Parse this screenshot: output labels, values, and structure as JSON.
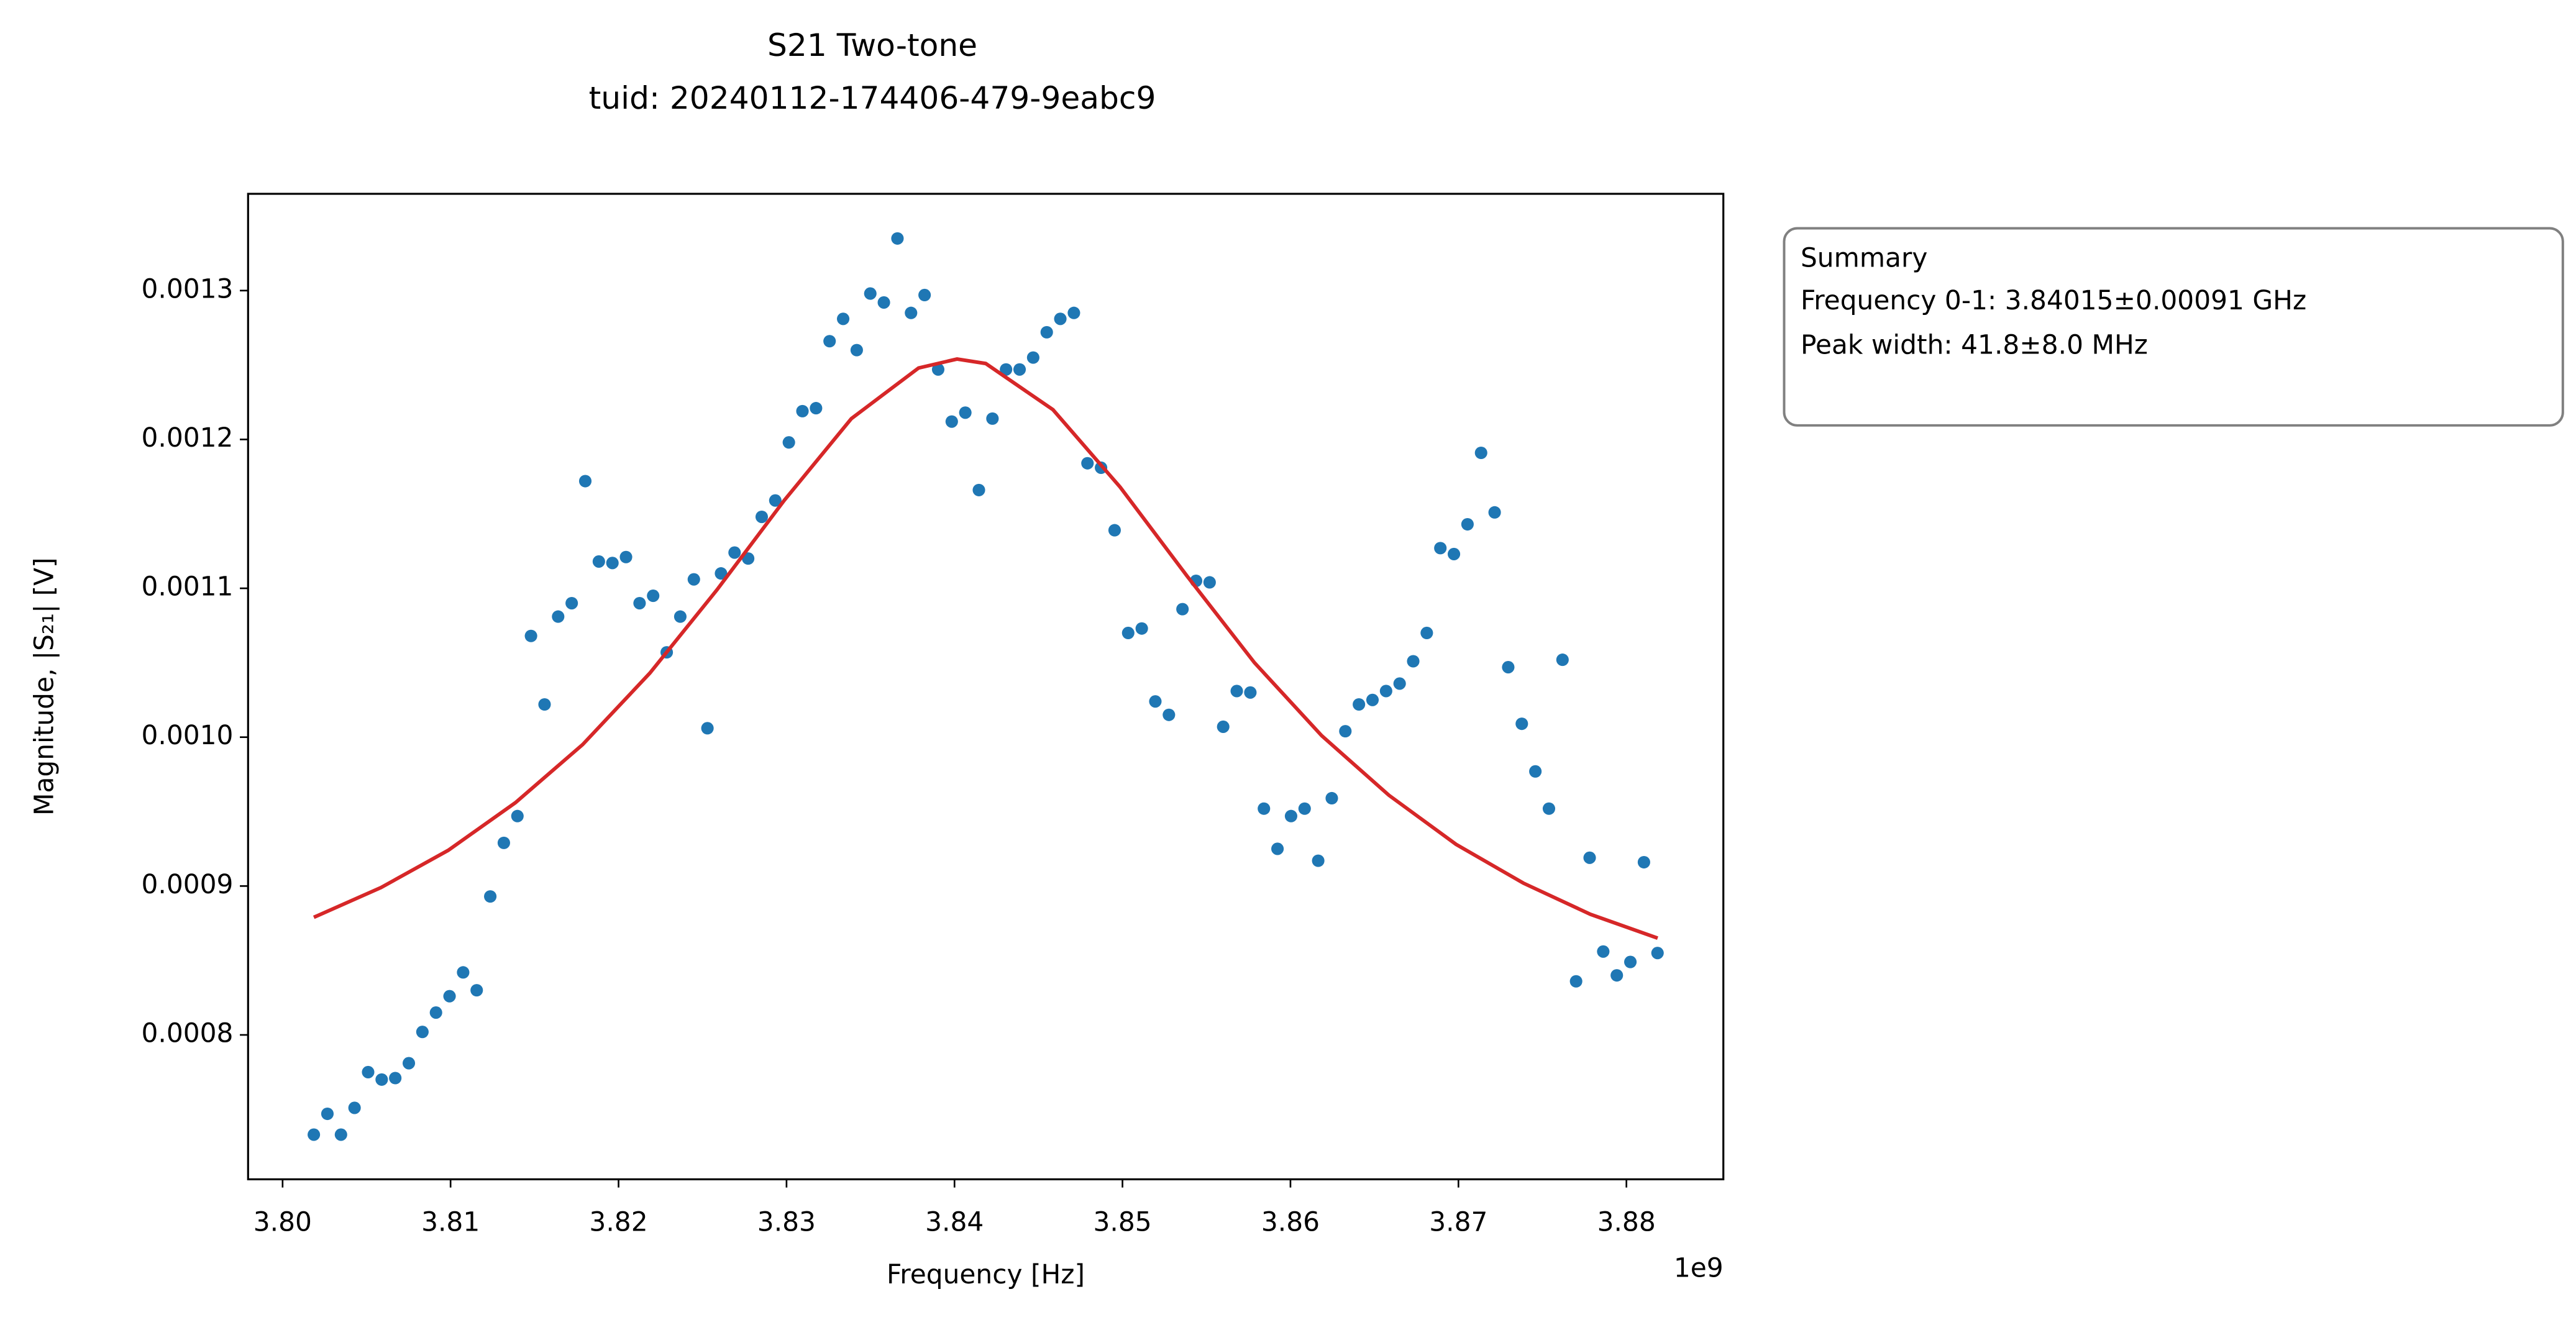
{
  "chart_data": {
    "type": "scatter",
    "title": [
      "S21 Two-tone",
      "tuid: 20240112-174406-479-9eabc9"
    ],
    "x_label": "Frequency [Hz]",
    "x_offset_label": "1e9",
    "y_label": "Magnitude, |S₂₁| [V]",
    "xlim": [
      3797946000,
      3885771000
    ],
    "ylim": [
      0.000703,
      0.001365
    ],
    "xticks": [
      {
        "value": 3800000000,
        "label": "3.80"
      },
      {
        "value": 3810000000,
        "label": "3.81"
      },
      {
        "value": 3820000000,
        "label": "3.82"
      },
      {
        "value": 3830000000,
        "label": "3.83"
      },
      {
        "value": 3840000000,
        "label": "3.84"
      },
      {
        "value": 3850000000,
        "label": "3.85"
      },
      {
        "value": 3860000000,
        "label": "3.86"
      },
      {
        "value": 3870000000,
        "label": "3.87"
      },
      {
        "value": 3880000000,
        "label": "3.88"
      }
    ],
    "yticks": [
      0.0008,
      0.0009,
      {
        "value": 0.001,
        "label": "0.0010"
      },
      0.0011,
      0.0012,
      0.0013
    ],
    "grid": false,
    "annotation": [
      "Summary",
      "Frequency 0-1: 3.84015±0.00091 GHz",
      "Peak width: 41.8±8.0 MHz"
    ],
    "series": [
      {
        "type": "scatter",
        "color": "#1f77b4",
        "x": [
          3801860000,
          3802668000,
          3803476000,
          3804284000,
          3805092000,
          3805900000,
          3806708000,
          3807516000,
          3808324000,
          3809132000,
          3809940000,
          3810748000,
          3811556000,
          3812364000,
          3813172000,
          3813980000,
          3814788000,
          3815596000,
          3816404000,
          3817212000,
          3818020000,
          3818828000,
          3819636000,
          3820444000,
          3821252000,
          3822060000,
          3822868000,
          3823676000,
          3824484000,
          3825292000,
          3826100000,
          3826908000,
          3827716000,
          3828524000,
          3829332000,
          3830140000,
          3830948000,
          3831756000,
          3832564000,
          3833372000,
          3834180000,
          3834988000,
          3835796000,
          3836604000,
          3837412000,
          3838220000,
          3839028000,
          3839836000,
          3840644000,
          3841452000,
          3842260000,
          3843068000,
          3843876000,
          3844684000,
          3845492000,
          3846300000,
          3847108000,
          3847916000,
          3848724000,
          3849532000,
          3850340000,
          3851148000,
          3851956000,
          3852764000,
          3853572000,
          3854380000,
          3855188000,
          3855996000,
          3856804000,
          3857612000,
          3858420000,
          3859228000,
          3860036000,
          3860844000,
          3861652000,
          3862460000,
          3863268000,
          3864076000,
          3864884000,
          3865692000,
          3866500000,
          3867308000,
          3868116000,
          3868924000,
          3869732000,
          3870540000,
          3871348000,
          3872156000,
          3872964000,
          3873772000,
          3874580000,
          3875388000,
          3876196000,
          3877004000,
          3877812000,
          3878620000,
          3879428000,
          3880236000,
          3881044000,
          3881852000
        ],
        "values": [
          0.000733,
          0.000747,
          0.000733,
          0.000751,
          0.000775,
          0.00077,
          0.000771,
          0.000781,
          0.000802,
          0.000815,
          0.000826,
          0.000842,
          0.00083,
          0.000893,
          0.000929,
          0.000947,
          0.001068,
          0.001022,
          0.001081,
          0.00109,
          0.001172,
          0.001118,
          0.001117,
          0.001121,
          0.00109,
          0.001095,
          0.001057,
          0.001081,
          0.001106,
          0.001006,
          0.00111,
          0.001124,
          0.00112,
          0.001148,
          0.001159,
          0.001198,
          0.001219,
          0.001221,
          0.001266,
          0.001281,
          0.00126,
          0.001298,
          0.001292,
          0.001335,
          0.001285,
          0.001297,
          0.001247,
          0.001212,
          0.001218,
          0.001166,
          0.001214,
          0.001247,
          0.001247,
          0.001255,
          0.001272,
          0.001281,
          0.001285,
          0.001184,
          0.001181,
          0.001139,
          0.00107,
          0.001073,
          0.001024,
          0.001015,
          0.001086,
          0.001105,
          0.001104,
          0.001007,
          0.001031,
          0.00103,
          0.000952,
          0.000925,
          0.000947,
          0.000952,
          0.000917,
          0.000959,
          0.001004,
          0.001022,
          0.001025,
          0.001031,
          0.001036,
          0.001051,
          0.00107,
          0.001127,
          0.001123,
          0.001143,
          0.001191,
          0.001151,
          0.001047,
          0.001009,
          0.000977,
          0.000952,
          0.001052,
          0.000836,
          0.000919,
          0.000856,
          0.00084,
          0.000849,
          0.000916,
          0.000855
        ]
      },
      {
        "type": "line",
        "color": "#d62728",
        "x": [
          3801860000,
          3805860000,
          3809860000,
          3813860000,
          3817860000,
          3821860000,
          3825860000,
          3829860000,
          3833860000,
          3837860000,
          3840150000,
          3841860000,
          3845860000,
          3849860000,
          3853860000,
          3857860000,
          3861860000,
          3865860000,
          3869860000,
          3873860000,
          3877860000,
          3881860000
        ],
        "values": [
          0.000879,
          0.000899,
          0.000924,
          0.000956,
          0.000995,
          0.001043,
          0.001099,
          0.001159,
          0.001214,
          0.001248,
          0.001254,
          0.001251,
          0.00122,
          0.001168,
          0.001108,
          0.00105,
          0.001001,
          0.000961,
          0.000928,
          0.000902,
          0.000881,
          0.000865
        ]
      }
    ]
  }
}
